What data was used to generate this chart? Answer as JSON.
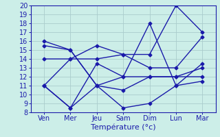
{
  "days": [
    "Ven",
    "Mer",
    "Jeu",
    "Sam",
    "Dim",
    "Lun",
    "Mar"
  ],
  "x_positions": [
    0,
    1,
    2,
    3,
    4,
    5,
    6
  ],
  "lines": [
    [
      11,
      8.5,
      11,
      8.5,
      9,
      11,
      11.5
    ],
    [
      15.5,
      15,
      11,
      10.5,
      12,
      12,
      12
    ],
    [
      11,
      8.5,
      13.5,
      12,
      12,
      12,
      13
    ],
    [
      14,
      14,
      15.5,
      14.5,
      14.5,
      20,
      17
    ],
    [
      16,
      15,
      11,
      12,
      18,
      11,
      13.5
    ],
    [
      11,
      14,
      14,
      14.5,
      13,
      13,
      16.5
    ]
  ],
  "line_color": "#1a1aaa",
  "marker": "D",
  "markersize": 2.5,
  "linewidth": 1.0,
  "ylim": [
    8,
    20
  ],
  "yticks": [
    8,
    9,
    10,
    11,
    12,
    13,
    14,
    15,
    16,
    17,
    18,
    19,
    20
  ],
  "xlabel": "Température (°c)",
  "background_color": "#cceee8",
  "grid_color": "#aacccc",
  "tick_fontsize": 7,
  "label_fontsize": 8
}
